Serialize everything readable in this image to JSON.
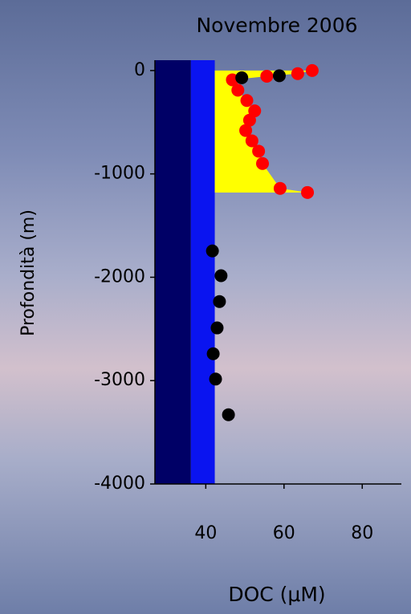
{
  "chart_data": {
    "type": "scatter",
    "title": "Novembre 2006",
    "xlabel": "DOC (μM)",
    "ylabel": "Profondità (m)",
    "xlim": [
      27,
      90
    ],
    "xticks": [
      40,
      60,
      80
    ],
    "ylim": [
      -4000,
      100
    ],
    "yticks": [
      0,
      -1000,
      -2000,
      -3000,
      -4000
    ],
    "bands": [
      {
        "color": "#000066",
        "right": 36.2
      },
      {
        "color": "#0a14f0",
        "right": 42.3
      }
    ],
    "series": [
      {
        "color": "#ff0000",
        "fill_color": "#ffff00",
        "x": [
          67.2,
          63.5,
          55.6,
          46.8,
          48.2,
          50.5,
          52.5,
          51.2,
          50.2,
          51.8,
          53.5,
          54.5,
          59,
          66
        ],
        "values": [
          0,
          -30,
          -55,
          -90,
          -190,
          -290,
          -390,
          -480,
          -580,
          -680,
          -780,
          -900,
          -1140,
          -1180
        ]
      },
      {
        "color": "#000000",
        "x": [
          49.2,
          58.8,
          41.7,
          43.9,
          43.5,
          42.9,
          41.9,
          42.5,
          45.8
        ],
        "values": [
          -70,
          -50,
          -1745,
          -1985,
          -2235,
          -2490,
          -2740,
          -2985,
          -3330
        ]
      }
    ]
  }
}
